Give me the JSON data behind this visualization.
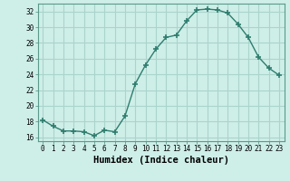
{
  "x": [
    0,
    1,
    2,
    3,
    4,
    5,
    6,
    7,
    8,
    9,
    10,
    11,
    12,
    13,
    14,
    15,
    16,
    17,
    18,
    19,
    20,
    21,
    22,
    23
  ],
  "y": [
    18.2,
    17.4,
    16.8,
    16.8,
    16.7,
    16.2,
    16.9,
    16.7,
    18.7,
    22.8,
    25.2,
    27.2,
    28.7,
    29.0,
    30.8,
    32.2,
    32.3,
    32.2,
    31.8,
    30.4,
    28.7,
    26.2,
    24.8,
    23.9
  ],
  "line_color": "#2e7d6e",
  "marker": "+",
  "marker_size": 4,
  "marker_edge_width": 1.2,
  "bg_color": "#ceeee8",
  "grid_color": "#aad4cc",
  "xlabel": "Humidex (Indice chaleur)",
  "ylim": [
    15.5,
    33.0
  ],
  "xlim": [
    -0.5,
    23.5
  ],
  "yticks": [
    16,
    18,
    20,
    22,
    24,
    26,
    28,
    30,
    32
  ],
  "xticks": [
    0,
    1,
    2,
    3,
    4,
    5,
    6,
    7,
    8,
    9,
    10,
    11,
    12,
    13,
    14,
    15,
    16,
    17,
    18,
    19,
    20,
    21,
    22,
    23
  ],
  "tick_fontsize": 5.5,
  "label_fontsize": 7.5,
  "line_width": 1.0,
  "spine_color": "#5a9a8a"
}
